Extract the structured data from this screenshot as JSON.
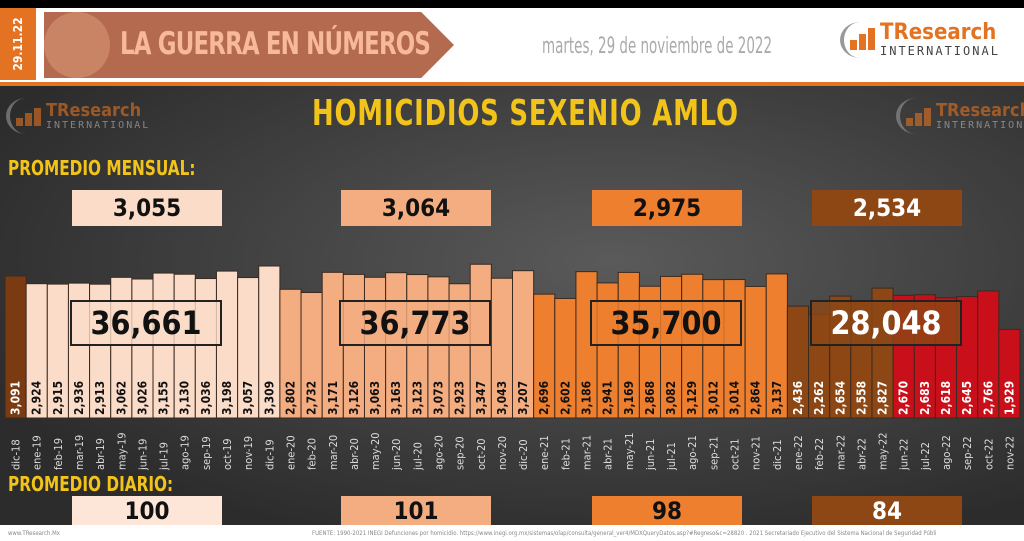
{
  "header": {
    "date_tab": "29.11.22",
    "banner_title": "LA GUERRA EN NÚMEROS",
    "date": "martes, 29 de noviembre de 2022",
    "logo_text": "TResearch",
    "logo_sub": "INTERNATIONAL"
  },
  "colors": {
    "y2018": "#7a3a12",
    "y2019": "#fbdcc8",
    "y2020": "#f4ad80",
    "y2021": "#ee7f2e",
    "y2022a": "#8c4715",
    "y2022b": "#c90f1a",
    "title": "#f2c419"
  },
  "sections": {
    "monthly": "PROMEDIO MENSUAL:",
    "daily": "PROMEDIO DIARIO:"
  },
  "footer": {
    "site": "www.TResearch.Mx",
    "source": "FUENTE: 1990-2021 INEGI Defunciones por homicidio. https://www.inegi.org.mx/sistemas/olap/consulta/general_ver4/MDXQueryDatos.asp?#Regreso&c=28820 . 2021 Secretariado Ejecutivo del Sistema Nacional de Seguridad Públi"
  },
  "chart_data": {
    "type": "bar",
    "title": "HOMICIDIOS SEXENIO AMLO",
    "categories": [
      "dic-18",
      "ene-19",
      "feb-19",
      "mar-19",
      "abr-19",
      "may-19",
      "jun-19",
      "jul-19",
      "ago-19",
      "sep-19",
      "oct-19",
      "nov-19",
      "dic-19",
      "ene-20",
      "feb-20",
      "mar-20",
      "abr-20",
      "may-20",
      "jun-20",
      "jul-20",
      "ago-20",
      "sep-20",
      "oct-20",
      "nov-20",
      "dic-20",
      "ene-21",
      "feb-21",
      "mar-21",
      "abr-21",
      "may-21",
      "jun-21",
      "jul-21",
      "ago-21",
      "sep-21",
      "oct-21",
      "nov-21",
      "dic-21",
      "ene-22",
      "feb-22",
      "mar-22",
      "abr-22",
      "may-22",
      "jun-22",
      "jul-22",
      "ago-22",
      "sep-22",
      "oct-22",
      "nov-22"
    ],
    "values": [
      3091,
      2924,
      2915,
      2936,
      2913,
      3062,
      3026,
      3155,
      3130,
      3036,
      3198,
      3057,
      3309,
      2802,
      2732,
      3171,
      3126,
      3063,
      3163,
      3123,
      3073,
      2923,
      3347,
      3043,
      3207,
      2696,
      2602,
      3186,
      2941,
      3169,
      2868,
      3082,
      3129,
      3012,
      3014,
      2864,
      3137,
      2436,
      2262,
      2654,
      2558,
      2827,
      2670,
      2683,
      2618,
      2645,
      2766,
      1929
    ],
    "labels": [
      "3,091",
      "2,924",
      "2,915",
      "2,936",
      "2,913",
      "3,062",
      "3,026",
      "3,155",
      "3,130",
      "3,036",
      "3,198",
      "3,057",
      "3,309",
      "2,802",
      "2,732",
      "3,171",
      "3,126",
      "3,063",
      "3,163",
      "3,123",
      "3,073",
      "2,923",
      "3,347",
      "3,043",
      "3,207",
      "2,696",
      "2,602",
      "3,186",
      "2,941",
      "3,169",
      "2,868",
      "3,082",
      "3,129",
      "3,012",
      "3,014",
      "2,864",
      "3,137",
      "2,436",
      "2,262",
      "2,654",
      "2,558",
      "2,827",
      "2,670",
      "2,683",
      "2,618",
      "2,645",
      "2,766",
      "1,929"
    ],
    "bar_colors": [
      "y2018",
      "y2019",
      "y2019",
      "y2019",
      "y2019",
      "y2019",
      "y2019",
      "y2019",
      "y2019",
      "y2019",
      "y2019",
      "y2019",
      "y2019",
      "y2020",
      "y2020",
      "y2020",
      "y2020",
      "y2020",
      "y2020",
      "y2020",
      "y2020",
      "y2020",
      "y2020",
      "y2020",
      "y2020",
      "y2021",
      "y2021",
      "y2021",
      "y2021",
      "y2021",
      "y2021",
      "y2021",
      "y2021",
      "y2021",
      "y2021",
      "y2021",
      "y2021",
      "y2022a",
      "y2022a",
      "y2022a",
      "y2022a",
      "y2022a",
      "y2022b",
      "y2022b",
      "y2022b",
      "y2022b",
      "y2022b",
      "y2022b"
    ],
    "ylim": [
      0,
      3400
    ],
    "groups": [
      {
        "color": "y2019",
        "monthly_avg": "3,055",
        "total": "36,661",
        "daily_avg": "100"
      },
      {
        "color": "y2020",
        "monthly_avg": "3,064",
        "total": "36,773",
        "daily_avg": "101"
      },
      {
        "color": "y2021",
        "monthly_avg": "2,975",
        "total": "35,700",
        "daily_avg": "98"
      },
      {
        "color": "y2022a",
        "monthly_avg": "2,534",
        "total": "28,048",
        "daily_avg": "84"
      }
    ]
  }
}
